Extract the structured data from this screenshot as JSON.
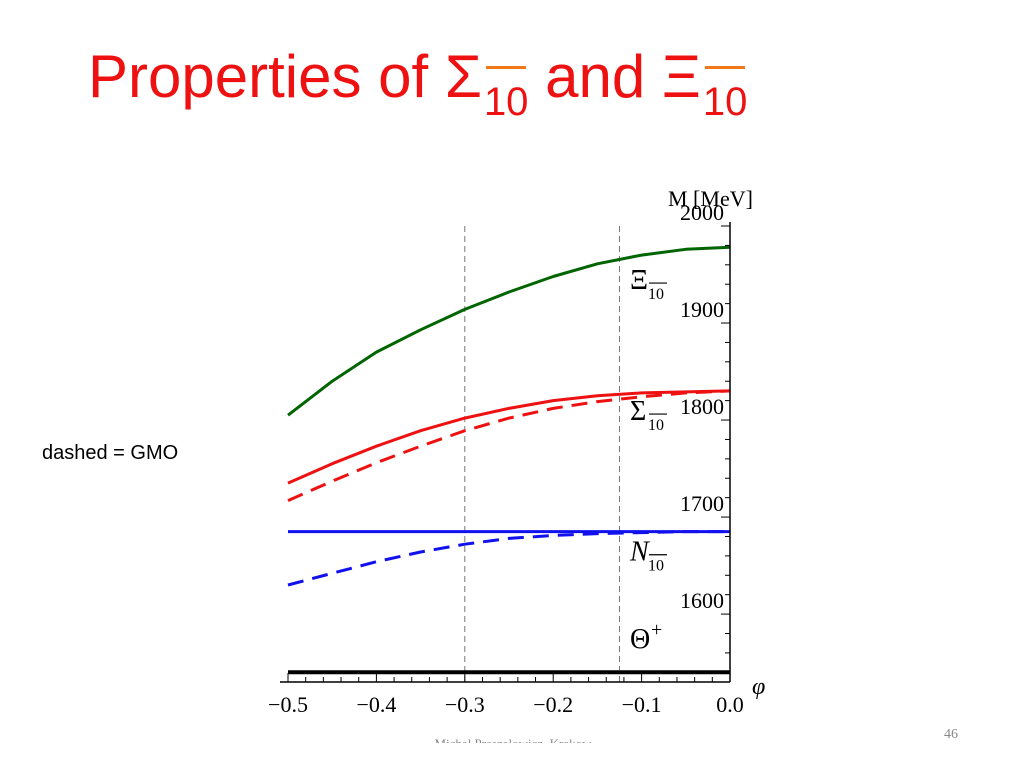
{
  "slide": {
    "title_prefix": "Properties of ",
    "title_sym1": "Σ",
    "title_sub1": "10",
    "title_mid": " and ",
    "title_sym2": "Ξ",
    "title_sub2": "10",
    "side_note": "dashed = GMO",
    "footer": "Michal Praszalowicz, Krakow",
    "page_number": "46"
  },
  "colors": {
    "title": "#ee1111",
    "overline": "#f07818",
    "xi": "#006400",
    "sigma": "#ee1111",
    "nucleon": "#1111ee",
    "theta": "#000000"
  },
  "chart_data": {
    "type": "line",
    "xlabel": "φ",
    "ylabel": "M [MeV]",
    "xlim": [
      -0.5,
      0.0
    ],
    "ylim": [
      1530,
      2000
    ],
    "x_ticks": [
      -0.5,
      -0.4,
      -0.3,
      -0.2,
      -0.1,
      0.0
    ],
    "x_tick_labels": [
      "−0.5",
      "−0.4",
      "−0.3",
      "−0.2",
      "−0.1",
      "0.0"
    ],
    "y_ticks": [
      1600,
      1700,
      1800,
      1900,
      2000
    ],
    "y_tick_labels": [
      "1600",
      "1700",
      "1800",
      "1900",
      "2000"
    ],
    "vertical_reference_lines": [
      -0.3,
      -0.125
    ],
    "x": [
      -0.5,
      -0.45,
      -0.4,
      -0.35,
      -0.3,
      -0.25,
      -0.2,
      -0.15,
      -0.1,
      -0.05,
      0.0
    ],
    "series": [
      {
        "name": "Ξ",
        "style": "solid",
        "color": "#006400",
        "values": [
          1805,
          1840,
          1870,
          1893,
          1914,
          1932,
          1948,
          1961,
          1970,
          1976,
          1978
        ]
      },
      {
        "name": "Σ",
        "style": "solid",
        "color": "#ee1111",
        "values": [
          1735,
          1755,
          1773,
          1789,
          1802,
          1812,
          1820,
          1825,
          1828,
          1829,
          1830
        ]
      },
      {
        "name": "Σ",
        "style": "dashed",
        "color": "#ee1111",
        "values": [
          1717,
          1737,
          1756,
          1773,
          1789,
          1802,
          1812,
          1819,
          1824,
          1828,
          1830
        ]
      },
      {
        "name": "N",
        "style": "solid",
        "color": "#1111ee",
        "values": [
          1685,
          1685,
          1685,
          1685,
          1685,
          1685,
          1685,
          1685,
          1685,
          1685,
          1685
        ]
      },
      {
        "name": "N",
        "style": "dashed",
        "color": "#1111ee",
        "values": [
          1630,
          1642,
          1654,
          1664,
          1672,
          1678,
          1681,
          1683,
          1684,
          1685,
          1685
        ]
      },
      {
        "name": "Θ",
        "style": "solid",
        "color": "#000000",
        "values": [
          1540,
          1540,
          1540,
          1540,
          1540,
          1540,
          1540,
          1540,
          1540,
          1540,
          1540
        ]
      }
    ],
    "curve_labels": [
      {
        "sym": "Ξ",
        "sub": "10",
        "sup": "",
        "at_y": 1935
      },
      {
        "sym": "Σ",
        "sub": "10",
        "sup": "",
        "at_y": 1800
      },
      {
        "sym": "N",
        "sub": "10",
        "sup": "",
        "at_y": 1655
      },
      {
        "sym": "Θ",
        "sub": "",
        "sup": "+",
        "at_y": 1565
      }
    ]
  }
}
